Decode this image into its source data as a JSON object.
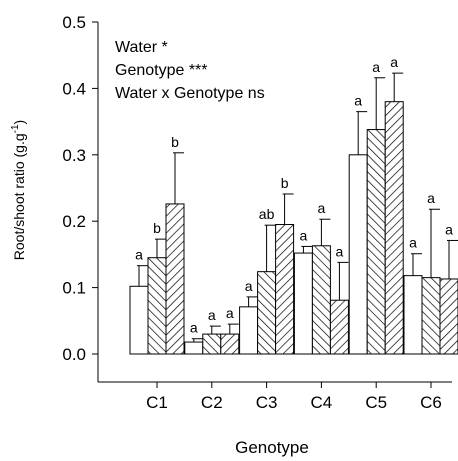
{
  "chart_data": {
    "type": "bar",
    "x_label": "Genotype",
    "y_label": {
      "text": "Root/shoot ratio (g.g",
      "sup": "-1",
      "end": ")"
    },
    "annotations": [
      "Water *",
      "Genotype ***",
      "Water x Genotype ns"
    ],
    "categories": [
      "C1",
      "C2",
      "C3",
      "C4",
      "C5",
      "C6"
    ],
    "series": [
      {
        "color": "#ffffff",
        "hatch": "none",
        "values": [
          0.102,
          0.018,
          0.071,
          0.152,
          0.3,
          0.118
        ],
        "errors": [
          0.031,
          0.005,
          0.015,
          0.01,
          0.065,
          0.033
        ],
        "letters": [
          "a",
          "a",
          "a",
          "a",
          "a",
          "a"
        ]
      },
      {
        "color": "#ffffff",
        "hatch": "backward",
        "values": [
          0.145,
          0.03,
          0.124,
          0.163,
          0.338,
          0.115
        ],
        "errors": [
          0.028,
          0.012,
          0.07,
          0.04,
          0.078,
          0.103
        ],
        "letters": [
          "b",
          "a",
          "ab",
          "a",
          "a",
          "a"
        ]
      },
      {
        "color": "#ffffff",
        "hatch": "forward",
        "values": [
          0.226,
          0.03,
          0.195,
          0.081,
          0.38,
          0.113
        ],
        "errors": [
          0.077,
          0.015,
          0.046,
          0.057,
          0.043,
          0.058
        ],
        "letters": [
          "b",
          "a",
          "b",
          "a",
          "a",
          "a"
        ]
      }
    ],
    "ylim": [
      0,
      0.5
    ],
    "yticks": [
      {
        "value": 0,
        "label": "0.0"
      },
      0.1,
      0.2,
      0.3,
      0.4,
      0.5
    ]
  }
}
